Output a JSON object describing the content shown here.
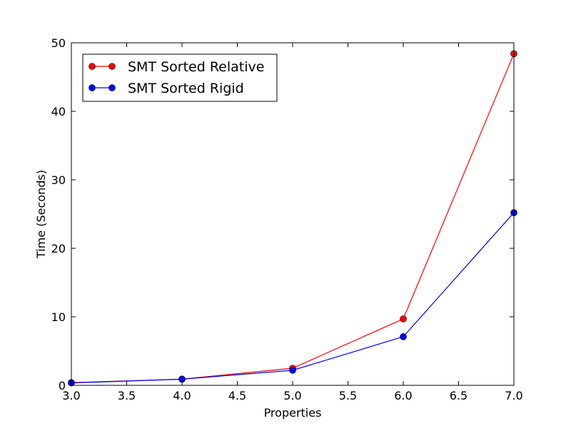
{
  "chart_data": {
    "type": "line",
    "title": "",
    "xlabel": "Properties",
    "ylabel": "Time (Seconds)",
    "xlim": [
      3.0,
      7.0
    ],
    "ylim": [
      0,
      50
    ],
    "xticks": [
      "3.0",
      "3.5",
      "4.0",
      "4.5",
      "5.0",
      "5.5",
      "6.0",
      "6.5",
      "7.0"
    ],
    "yticks": [
      "0",
      "10",
      "20",
      "30",
      "40",
      "50"
    ],
    "grid": false,
    "legend_position": "top-left",
    "x": [
      3,
      4,
      5,
      6,
      7
    ],
    "series": [
      {
        "name": "SMT Sorted Relative",
        "color": "#ff0000",
        "values": [
          0.4,
          0.9,
          2.5,
          9.7,
          48.4
        ]
      },
      {
        "name": "SMT Sorted Rigid",
        "color": "#0000ff",
        "values": [
          0.35,
          0.9,
          2.2,
          7.1,
          25.2
        ]
      }
    ]
  }
}
